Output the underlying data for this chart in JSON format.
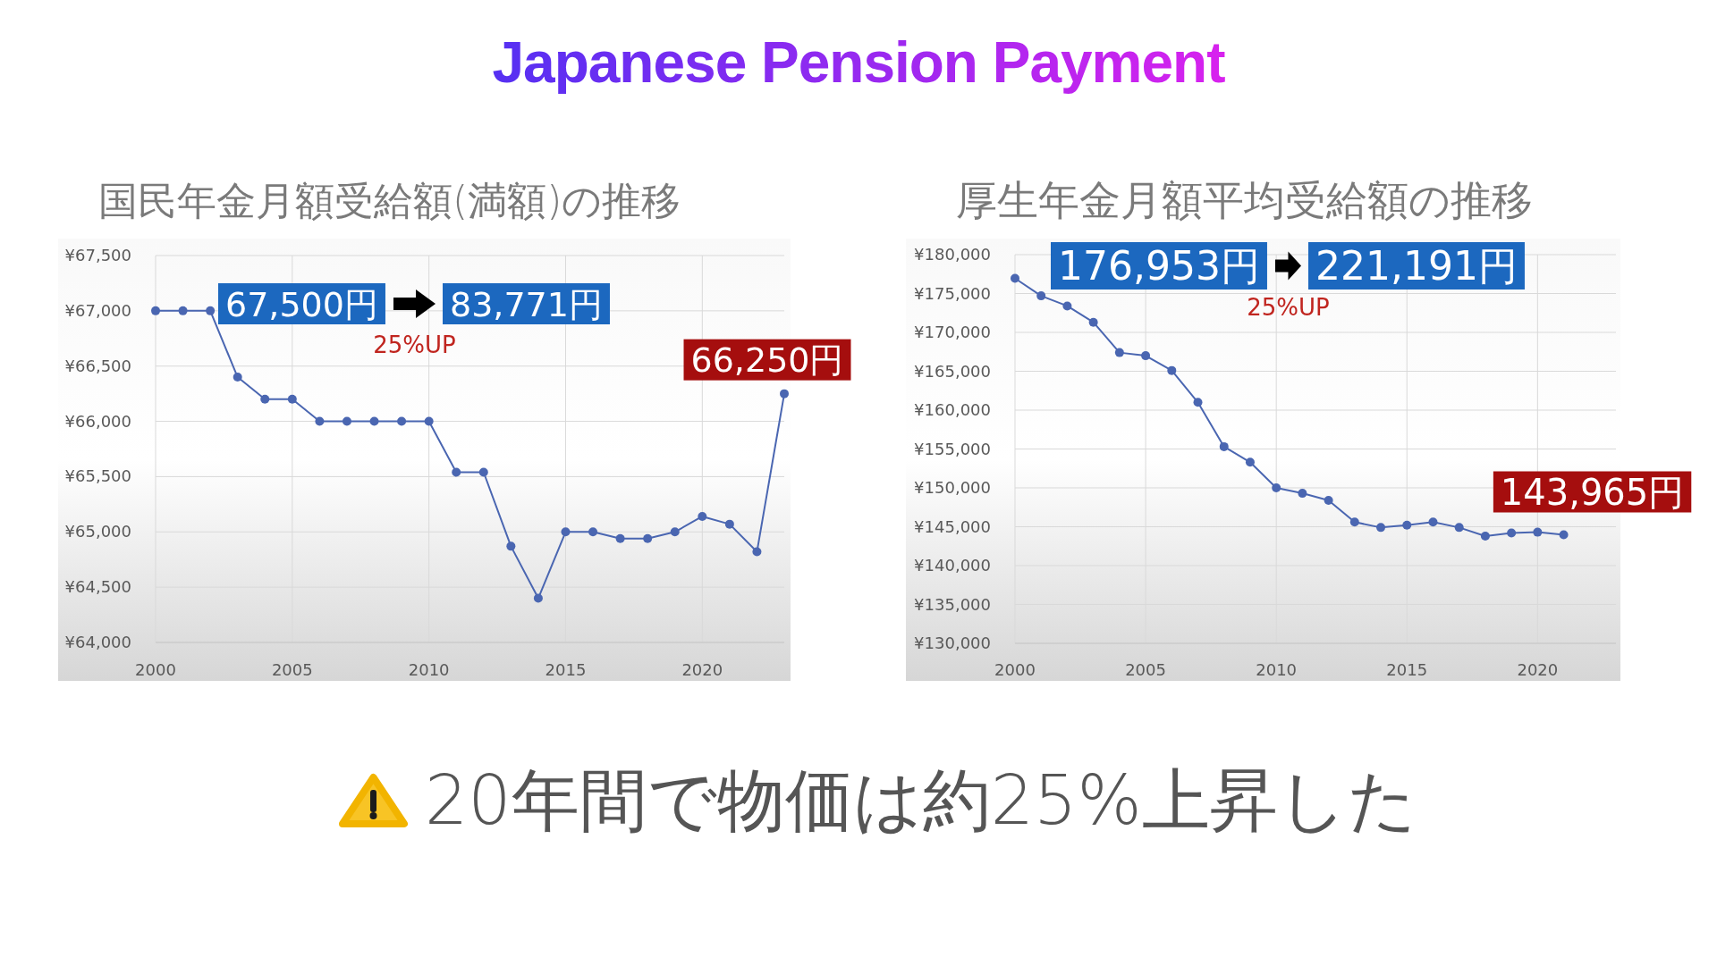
{
  "chart_data": [
    {
      "type": "other",
      "title": "Japanese Pension Payment"
    },
    {
      "type": "line",
      "title": "国民年金月額受給額(満額)の推移",
      "x": [
        2000,
        2001,
        2002,
        2003,
        2004,
        2005,
        2006,
        2007,
        2008,
        2009,
        2010,
        2011,
        2012,
        2013,
        2014,
        2015,
        2016,
        2017,
        2018,
        2019,
        2020,
        2021,
        2022,
        2023
      ],
      "values": [
        67000,
        67000,
        67000,
        66400,
        66200,
        66200,
        66000,
        66000,
        66000,
        66000,
        66000,
        65540,
        65540,
        64870,
        64400,
        65000,
        65000,
        64940,
        64940,
        65000,
        65140,
        65070,
        64820,
        66250
      ],
      "color": "#4a66b1",
      "xlim": [
        2000,
        2023
      ],
      "xticks": [
        2000,
        2005,
        2010,
        2015,
        2020
      ],
      "ylim": [
        64000,
        67500
      ],
      "yticks": [
        {
          "value": 64000,
          "label": "¥64,000"
        },
        {
          "value": 64500,
          "label": "¥64,500"
        },
        {
          "value": 65000,
          "label": "¥65,000"
        },
        {
          "value": 65500,
          "label": "¥65,500"
        },
        {
          "value": 66000,
          "label": "¥66,000"
        },
        {
          "value": 66500,
          "label": "¥66,500"
        },
        {
          "value": 67000,
          "label": "¥67,000"
        },
        {
          "value": 67500,
          "label": "¥67,500"
        }
      ],
      "grid": true,
      "marker": "circle",
      "annotations": [
        "67,500円",
        "83,771円",
        "25%UP",
        {
          "text": "66,250円",
          "x": 2023,
          "y": 66250
        }
      ]
    },
    {
      "type": "line",
      "title": "厚生年金月額平均受給額の推移",
      "x": [
        2000,
        2001,
        2002,
        2003,
        2004,
        2005,
        2006,
        2007,
        2008,
        2009,
        2010,
        2011,
        2012,
        2013,
        2014,
        2015,
        2016,
        2017,
        2018,
        2019,
        2020,
        2021
      ],
      "values": [
        176953,
        174700,
        173400,
        171300,
        167400,
        167000,
        165100,
        161000,
        155300,
        153300,
        150000,
        149300,
        148400,
        145600,
        144900,
        145200,
        145600,
        144900,
        143800,
        144200,
        144300,
        143965
      ],
      "color": "#4a66b1",
      "xlim": [
        2000,
        2023
      ],
      "xticks": [
        2000,
        2005,
        2010,
        2015,
        2020
      ],
      "ylim": [
        130000,
        180000
      ],
      "yticks": [
        {
          "value": 130000,
          "label": "¥130,000"
        },
        {
          "value": 135000,
          "label": "¥135,000"
        },
        {
          "value": 140000,
          "label": "¥140,000"
        },
        {
          "value": 145000,
          "label": "¥145,000"
        },
        {
          "value": 150000,
          "label": "¥150,000"
        },
        {
          "value": 155000,
          "label": "¥155,000"
        },
        {
          "value": 160000,
          "label": "¥160,000"
        },
        {
          "value": 165000,
          "label": "¥165,000"
        },
        {
          "value": 170000,
          "label": "¥170,000"
        },
        {
          "value": 175000,
          "label": "¥175,000"
        },
        {
          "value": 180000,
          "label": "¥180,000"
        }
      ],
      "grid": true,
      "marker": "circle",
      "annotations": [
        "176,953円",
        "221,191円",
        "25%UP",
        {
          "text": "143,965円",
          "x": 2021,
          "y": 143965
        }
      ]
    },
    {
      "type": "other",
      "annotations": [
        "20年間で物価は約25%上昇した"
      ]
    }
  ]
}
